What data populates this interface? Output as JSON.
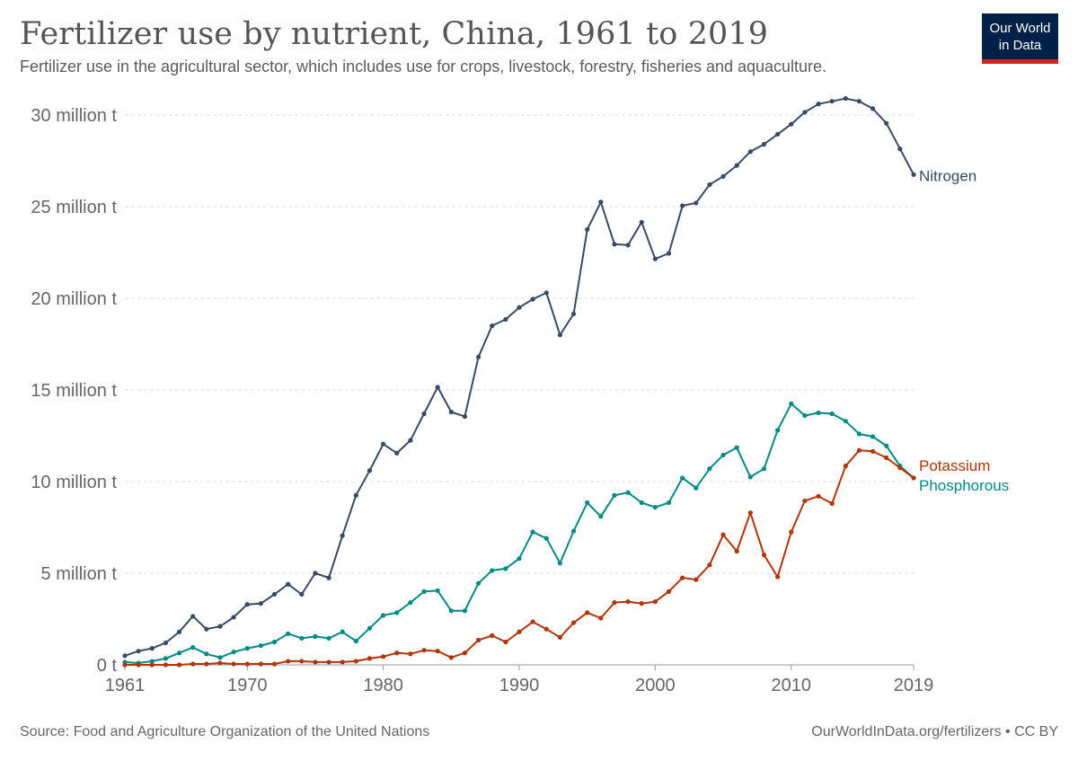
{
  "header": {
    "title": "Fertilizer use by nutrient, China, 1961 to 2019",
    "subtitle": "Fertilizer use in the agricultural sector, which includes use for crops, livestock, forestry, fisheries and aquaculture.",
    "logo_line1": "Our World",
    "logo_line2": "in Data"
  },
  "footer": {
    "source": "Source: Food and Agriculture Organization of the United Nations",
    "credit": "OurWorldInData.org/fertilizers • CC BY"
  },
  "colors": {
    "nitrogen": "#3a4a66",
    "phosphorous": "#008a84",
    "potassium": "#b13507",
    "grid": "#dddddd",
    "logo_bg": "#002147",
    "logo_accent": "#ce261e"
  },
  "chart_data": {
    "type": "line",
    "title": "Fertilizer use by nutrient, China, 1961 to 2019",
    "subtitle": "Fertilizer use in the agricultural sector, which includes use for crops, livestock, forestry, fisheries and aquaculture.",
    "x": [
      1961,
      1962,
      1963,
      1964,
      1965,
      1966,
      1967,
      1968,
      1969,
      1970,
      1971,
      1972,
      1973,
      1974,
      1975,
      1976,
      1977,
      1978,
      1979,
      1980,
      1981,
      1982,
      1983,
      1984,
      1985,
      1986,
      1987,
      1988,
      1989,
      1990,
      1991,
      1992,
      1993,
      1994,
      1995,
      1996,
      1997,
      1998,
      1999,
      2000,
      2001,
      2002,
      2003,
      2004,
      2005,
      2006,
      2007,
      2008,
      2009,
      2010,
      2011,
      2012,
      2013,
      2014,
      2015,
      2016,
      2017,
      2018,
      2019
    ],
    "xlim": [
      1961,
      2019
    ],
    "x_ticks": [
      1961,
      1970,
      1980,
      1990,
      2000,
      2010,
      2019
    ],
    "y_ticks": [
      0,
      5,
      10,
      15,
      20,
      25,
      30
    ],
    "y_tick_labels": [
      "0 t",
      "5 million t",
      "10 million t",
      "15 million t",
      "20 million t",
      "25 million t",
      "30 million t"
    ],
    "ylim": [
      0,
      30
    ],
    "y_unit": "million t",
    "grid": "horizontal dashed",
    "legend": "inline labels at right end of lines",
    "series": [
      {
        "name": "Nitrogen",
        "color": "#3a4a66",
        "values": [
          0.5,
          0.75,
          0.9,
          1.2,
          1.8,
          2.65,
          1.95,
          2.1,
          2.6,
          3.3,
          3.35,
          3.85,
          4.4,
          3.85,
          5.0,
          4.75,
          7.05,
          9.25,
          10.6,
          12.05,
          11.55,
          12.25,
          13.7,
          15.15,
          13.8,
          13.55,
          16.8,
          18.5,
          18.85,
          19.5,
          19.95,
          20.3,
          18.0,
          19.15,
          23.75,
          25.25,
          22.95,
          22.9,
          24.15,
          22.15,
          22.45,
          25.05,
          25.2,
          26.2,
          26.65,
          27.25,
          28.0,
          28.4,
          28.95,
          29.5,
          30.15,
          30.6,
          30.75,
          30.9,
          30.75,
          30.35,
          29.55,
          28.15,
          26.75
        ]
      },
      {
        "name": "Phosphorous",
        "color": "#008a84",
        "values": [
          0.15,
          0.1,
          0.2,
          0.35,
          0.65,
          0.95,
          0.6,
          0.4,
          0.7,
          0.9,
          1.05,
          1.25,
          1.7,
          1.45,
          1.55,
          1.45,
          1.8,
          1.3,
          2.0,
          2.7,
          2.85,
          3.4,
          4.0,
          4.05,
          2.95,
          2.95,
          4.45,
          5.15,
          5.25,
          5.8,
          7.25,
          6.9,
          5.55,
          7.3,
          8.85,
          8.1,
          9.25,
          9.4,
          8.85,
          8.6,
          8.85,
          10.2,
          9.65,
          10.7,
          11.45,
          11.85,
          10.25,
          10.7,
          12.8,
          14.25,
          13.6,
          13.75,
          13.7,
          13.3,
          12.6,
          12.45,
          11.95,
          10.85,
          10.2
        ]
      },
      {
        "name": "Potassium",
        "color": "#b13507",
        "values": [
          0.0,
          0.0,
          0.0,
          0.0,
          0.0,
          0.05,
          0.05,
          0.1,
          0.05,
          0.05,
          0.05,
          0.05,
          0.2,
          0.2,
          0.15,
          0.15,
          0.15,
          0.2,
          0.35,
          0.45,
          0.65,
          0.6,
          0.8,
          0.75,
          0.4,
          0.65,
          1.35,
          1.6,
          1.25,
          1.8,
          2.35,
          1.95,
          1.5,
          2.3,
          2.85,
          2.55,
          3.4,
          3.45,
          3.35,
          3.45,
          4.0,
          4.75,
          4.65,
          5.45,
          7.1,
          6.2,
          8.3,
          6.0,
          4.8,
          7.25,
          8.95,
          9.2,
          8.8,
          10.85,
          11.7,
          11.65,
          11.3,
          10.75,
          10.2
        ]
      }
    ],
    "series_labels": [
      "Nitrogen",
      "Potassium",
      "Phosphorous"
    ]
  }
}
